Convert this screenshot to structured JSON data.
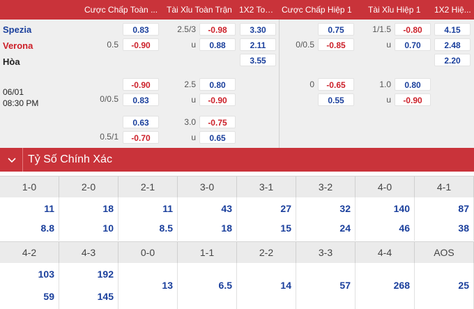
{
  "header": {
    "cols": [
      "Cược Chấp Toàn ...",
      "Tài Xỉu Toàn Trận",
      "1X2 Toà...",
      "Cược Chấp Hiệp 1",
      "Tài Xỉu Hiệp 1",
      "1X2 Hiệ..."
    ]
  },
  "match": {
    "home": "Spezia",
    "away": "Verona",
    "draw": "Hòa",
    "date": "06/01",
    "time": "08:30 PM"
  },
  "rows": {
    "r1": {
      "ft_hcp_line": "0.5",
      "ft_hcp_home": "0.83",
      "ft_hcp_away": "-0.90",
      "ft_ou_line": "2.5/3",
      "ft_ou_u": "u",
      "ft_ou_over": "-0.98",
      "ft_ou_under": "0.88",
      "ft_1x2_home": "3.30",
      "ft_1x2_away": "2.11",
      "ft_1x2_draw": "3.55",
      "h1_hcp_line": "0/0.5",
      "h1_hcp_home": "0.75",
      "h1_hcp_away": "-0.85",
      "h1_ou_line": "1/1.5",
      "h1_ou_u": "u",
      "h1_ou_over": "-0.80",
      "h1_ou_under": "0.70",
      "h1_1x2_home": "4.15",
      "h1_1x2_away": "2.48",
      "h1_1x2_draw": "2.20"
    },
    "r2": {
      "ft_hcp_line": "0/0.5",
      "ft_hcp_home": "-0.90",
      "ft_hcp_away": "0.83",
      "ft_ou_line": "2.5",
      "ft_ou_u": "u",
      "ft_ou_over": "0.80",
      "ft_ou_under": "-0.90",
      "h1_hcp_line": "0",
      "h1_hcp_home": "-0.65",
      "h1_hcp_away": "0.55",
      "h1_ou_line": "1.0",
      "h1_ou_u": "u",
      "h1_ou_over": "0.80",
      "h1_ou_under": "-0.90"
    },
    "r3": {
      "ft_hcp_line": "0.5/1",
      "ft_hcp_home": "0.63",
      "ft_hcp_away": "-0.70",
      "ft_ou_line": "3.0",
      "ft_ou_u": "u",
      "ft_ou_over": "-0.75",
      "ft_ou_under": "0.65"
    }
  },
  "correct_score": {
    "title": "Tỷ Số Chính Xác",
    "row1": [
      {
        "score": "1-0",
        "home": "11",
        "away": "8.8"
      },
      {
        "score": "2-0",
        "home": "18",
        "away": "10"
      },
      {
        "score": "2-1",
        "home": "11",
        "away": "8.5"
      },
      {
        "score": "3-0",
        "home": "43",
        "away": "18"
      },
      {
        "score": "3-1",
        "home": "27",
        "away": "15"
      },
      {
        "score": "3-2",
        "home": "32",
        "away": "24"
      },
      {
        "score": "4-0",
        "home": "140",
        "away": "46"
      },
      {
        "score": "4-1",
        "home": "87",
        "away": "38"
      }
    ],
    "row2": [
      {
        "score": "4-2",
        "home": "103",
        "away": "59"
      },
      {
        "score": "4-3",
        "home": "192",
        "away": "145"
      },
      {
        "score": "0-0",
        "single": "13"
      },
      {
        "score": "1-1",
        "single": "6.5"
      },
      {
        "score": "2-2",
        "single": "14"
      },
      {
        "score": "3-3",
        "single": "57"
      },
      {
        "score": "4-4",
        "single": "268"
      },
      {
        "score": "AOS",
        "single": "25"
      }
    ]
  },
  "colors": {
    "header_red": "#c9333a",
    "odds_blue": "#1a3f9c",
    "odds_red": "#cc1f28"
  }
}
